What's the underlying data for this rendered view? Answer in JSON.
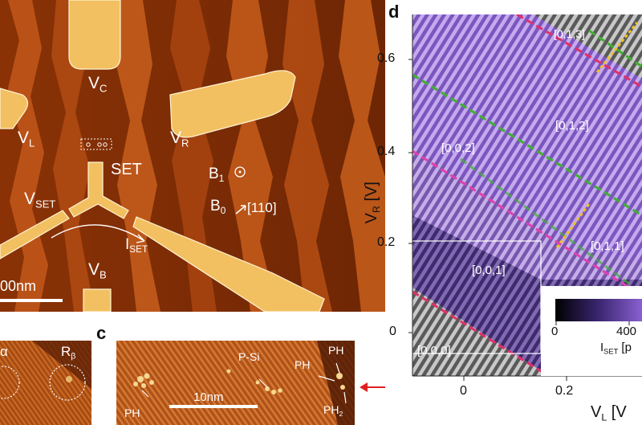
{
  "panel_a": {
    "gates": {
      "vc": {
        "main": "V",
        "sub": "C"
      },
      "vl": {
        "main": "V",
        "sub": "L"
      },
      "vr": {
        "main": "V",
        "sub": "R"
      },
      "vset": {
        "main": "V",
        "sub": "SET"
      },
      "vb": {
        "main": "V",
        "sub": "B"
      }
    },
    "set_label": "SET",
    "iset": {
      "main": "I",
      "sub": "SET"
    },
    "b1": {
      "main": "B",
      "sub": "1"
    },
    "b0": {
      "main": "B",
      "sub": "0"
    },
    "direction": "[110]",
    "scalebar": "00nm"
  },
  "panel_b": {
    "r_alpha": "α",
    "r_beta": {
      "main": "R",
      "sub": "β"
    }
  },
  "panel_c": {
    "letter": "c",
    "scalebar": "10nm",
    "labels": {
      "ph_left": "PH",
      "psi": "P-Si",
      "ph_mid": "PH",
      "ph_top": "PH",
      "ph2": {
        "main": "PH",
        "sub": "2"
      }
    }
  },
  "panel_d": {
    "letter": "d",
    "regions": [
      "[0,1,3]",
      "[0,1,2]",
      "[0,0,2]",
      "[0,1,1]",
      "[0,0,1]",
      "[0,0,0]"
    ],
    "y_ticks": [
      "0.6",
      "0.4",
      "0.2",
      "0"
    ],
    "x_ticks": [
      "0",
      "0.2"
    ],
    "ylabel": {
      "main": "V",
      "sub": "R",
      "unit": " [V]"
    },
    "xlabel": {
      "main": "V",
      "sub": "L",
      "unit": " [V"
    },
    "colorbar": {
      "ticks": [
        "0",
        "400"
      ],
      "label_main": "I",
      "label_sub": "SET",
      "label_unit": " [p"
    }
  },
  "colors": {
    "stm_dark": "#7a2a05",
    "stm_mid": "#b24a10",
    "gate_gold": "#f2c060",
    "map_purple": "#a47ee0",
    "map_gray": "#8a8a8a",
    "line_red": "#e0306a",
    "line_magenta": "#e040b0",
    "line_green": "#40b030",
    "line_yellow": "#f0c020",
    "arrow_red": "#e02020"
  }
}
